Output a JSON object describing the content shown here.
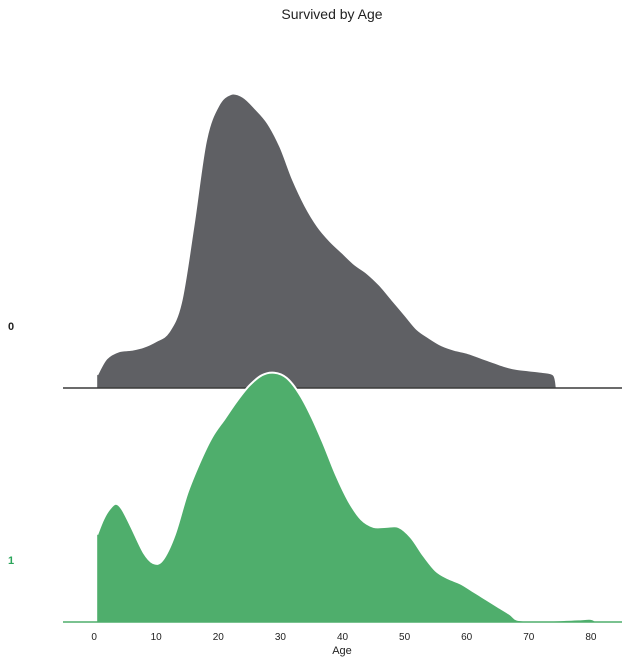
{
  "chart_data": {
    "type": "area",
    "title": "Survived by Age",
    "xlabel": "Age",
    "ylabel": "",
    "xlim": [
      -5,
      85
    ],
    "xticks": [
      0,
      10,
      20,
      30,
      40,
      50,
      60,
      70,
      80
    ],
    "grid": false,
    "legend": "none",
    "series": [
      {
        "name": "0",
        "color": "#5f6064",
        "label_color": "#222222",
        "points": [
          [
            0.5,
            0.045
          ],
          [
            2,
            0.1
          ],
          [
            4,
            0.125
          ],
          [
            6,
            0.13
          ],
          [
            8,
            0.14
          ],
          [
            10,
            0.16
          ],
          [
            12,
            0.19
          ],
          [
            14,
            0.29
          ],
          [
            16,
            0.55
          ],
          [
            18,
            0.84
          ],
          [
            20,
            0.96
          ],
          [
            22,
            1.0
          ],
          [
            24,
            0.99
          ],
          [
            26,
            0.95
          ],
          [
            28,
            0.9
          ],
          [
            30,
            0.82
          ],
          [
            32,
            0.71
          ],
          [
            34,
            0.62
          ],
          [
            36,
            0.55
          ],
          [
            38,
            0.5
          ],
          [
            40,
            0.46
          ],
          [
            42,
            0.42
          ],
          [
            44,
            0.39
          ],
          [
            46,
            0.35
          ],
          [
            48,
            0.3
          ],
          [
            50,
            0.25
          ],
          [
            52,
            0.2
          ],
          [
            54,
            0.17
          ],
          [
            56,
            0.145
          ],
          [
            58,
            0.13
          ],
          [
            60,
            0.12
          ],
          [
            62,
            0.105
          ],
          [
            64,
            0.09
          ],
          [
            66,
            0.075
          ],
          [
            68,
            0.065
          ],
          [
            70,
            0.06
          ],
          [
            72,
            0.055
          ],
          [
            74,
            0.045
          ],
          [
            74.5,
            0.0
          ]
        ]
      },
      {
        "name": "1",
        "color": "#4fae6c",
        "label_color": "#2aa55a",
        "points": [
          [
            0.5,
            0.34
          ],
          [
            1.5,
            0.4
          ],
          [
            2.5,
            0.44
          ],
          [
            3.5,
            0.46
          ],
          [
            4.5,
            0.44
          ],
          [
            6,
            0.37
          ],
          [
            8,
            0.27
          ],
          [
            9.5,
            0.23
          ],
          [
            11,
            0.24
          ],
          [
            13,
            0.34
          ],
          [
            15,
            0.5
          ],
          [
            17,
            0.62
          ],
          [
            19,
            0.72
          ],
          [
            21,
            0.79
          ],
          [
            23,
            0.86
          ],
          [
            25,
            0.92
          ],
          [
            27,
            0.96
          ],
          [
            29,
            0.97
          ],
          [
            31,
            0.95
          ],
          [
            33,
            0.89
          ],
          [
            35,
            0.8
          ],
          [
            37,
            0.69
          ],
          [
            39,
            0.57
          ],
          [
            41,
            0.47
          ],
          [
            43,
            0.4
          ],
          [
            45,
            0.37
          ],
          [
            47,
            0.37
          ],
          [
            49,
            0.37
          ],
          [
            51,
            0.33
          ],
          [
            53,
            0.26
          ],
          [
            55,
            0.2
          ],
          [
            57,
            0.17
          ],
          [
            59,
            0.15
          ],
          [
            61,
            0.12
          ],
          [
            63,
            0.09
          ],
          [
            65,
            0.06
          ],
          [
            67,
            0.03
          ],
          [
            68,
            0.01
          ],
          [
            70,
            0.005
          ],
          [
            72,
            0.005
          ],
          [
            74,
            0.006
          ],
          [
            76,
            0.008
          ],
          [
            78,
            0.01
          ],
          [
            80,
            0.012
          ],
          [
            81,
            0.0
          ]
        ]
      }
    ]
  }
}
